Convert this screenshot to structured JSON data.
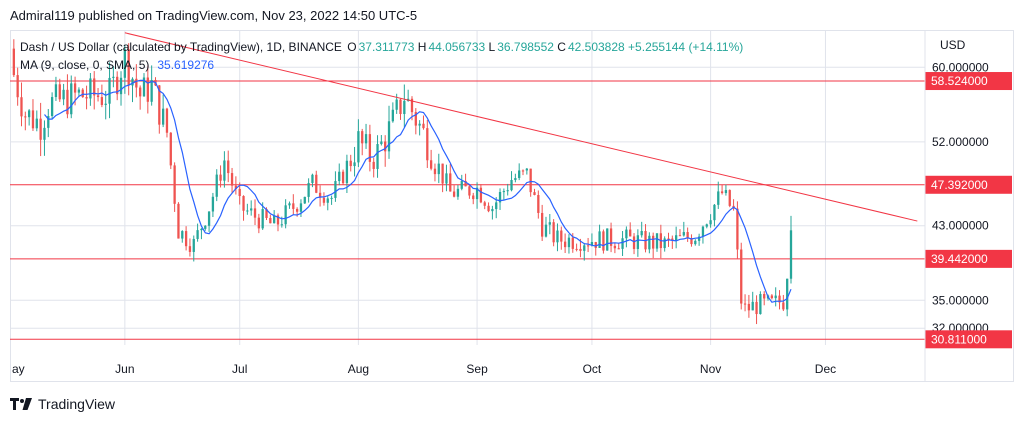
{
  "header": {
    "publisher": "Admiral119 published on TradingView.com, Nov 23, 2022 14:50 UTC-5"
  },
  "legend": {
    "symbol": "Dash / US Dollar (calculated by TradingView), 1D, BINANCE",
    "open_label": "O",
    "open": "37.311773",
    "high_label": "H",
    "high": "44.056733",
    "low_label": "L",
    "low": "36.798552",
    "close_label": "C",
    "close": "42.503828",
    "change": "+5.255144 (+14.11%)",
    "ma_label": "MA (9, close, 0, SMA, 5)",
    "ma_value": "35.619276"
  },
  "currency": "USD",
  "footer": {
    "brand": "TradingView",
    "logo_icon": "tradingview-logo-icon"
  },
  "colors": {
    "up": "#26a69a",
    "down": "#ef5350",
    "ma": "#2962ff",
    "level": "#f23645",
    "trend": "#f23645",
    "grid": "#e0e3eb"
  },
  "chart_data": {
    "type": "candlestick",
    "symbol": "DASHUSD",
    "interval": "1D",
    "y_ticks": [
      60,
      52,
      43,
      35,
      32
    ],
    "y_tick_labels": [
      "60.000000",
      "52.000000",
      "43.000000",
      "35.000000",
      "32.000000"
    ],
    "ylim": [
      30.2,
      64
    ],
    "x_tick_labels": [
      "ay",
      "Jun",
      "Jul",
      "Aug",
      "Sep",
      "Oct",
      "Nov",
      "Dec"
    ],
    "x_ticks": [
      "2022-05-01",
      "2022-06-01",
      "2022-07-01",
      "2022-08-01",
      "2022-09-01",
      "2022-10-01",
      "2022-11-01",
      "2022-12-01"
    ],
    "xlim": [
      "2022-05-02",
      "2022-12-27"
    ],
    "levels": [
      {
        "value": 58.524,
        "label": "58.524000"
      },
      {
        "value": 47.392,
        "label": "47.392000"
      },
      {
        "value": 39.442,
        "label": "39.442000"
      },
      {
        "value": 30.8111,
        "label": "30.811000"
      }
    ],
    "trendline": {
      "start": {
        "date": "2022-06-01",
        "value": 63.7
      },
      "end": {
        "date": "2022-12-25",
        "value": 43.5
      }
    },
    "anchors": [
      [
        "2022-05-01",
        62
      ],
      [
        "2022-05-06",
        55
      ],
      [
        "2022-05-10",
        54
      ],
      [
        "2022-05-12",
        56
      ],
      [
        "2022-05-20",
        57
      ],
      [
        "2022-05-28",
        57
      ],
      [
        "2022-06-01",
        61
      ],
      [
        "2022-06-05",
        57
      ],
      [
        "2022-06-08",
        58
      ],
      [
        "2022-06-12",
        53
      ],
      [
        "2022-06-15",
        42.5
      ],
      [
        "2022-06-19",
        41
      ],
      [
        "2022-06-23",
        45
      ],
      [
        "2022-06-27",
        50
      ],
      [
        "2022-07-01",
        45
      ],
      [
        "2022-07-05",
        44
      ],
      [
        "2022-07-10",
        43
      ],
      [
        "2022-07-15",
        45
      ],
      [
        "2022-07-20",
        47.5
      ],
      [
        "2022-07-25",
        46
      ],
      [
        "2022-08-01",
        52
      ],
      [
        "2022-08-05",
        50
      ],
      [
        "2022-08-10",
        54
      ],
      [
        "2022-08-13",
        57
      ],
      [
        "2022-08-19",
        52
      ],
      [
        "2022-08-25",
        46.5
      ],
      [
        "2022-09-01",
        47
      ],
      [
        "2022-09-05",
        45
      ],
      [
        "2022-09-10",
        48
      ],
      [
        "2022-09-14",
        48.5
      ],
      [
        "2022-09-18",
        43
      ],
      [
        "2022-09-22",
        41.5
      ],
      [
        "2022-10-01",
        41.5
      ],
      [
        "2022-10-10",
        41.5
      ],
      [
        "2022-10-20",
        41
      ],
      [
        "2022-10-28",
        42
      ],
      [
        "2022-11-04",
        46.5
      ],
      [
        "2022-11-07",
        44.5
      ],
      [
        "2022-11-09",
        35
      ],
      [
        "2022-11-10",
        34
      ],
      [
        "2022-11-13",
        34.5
      ],
      [
        "2022-11-17",
        34.5
      ],
      [
        "2022-11-20",
        35
      ],
      [
        "2022-11-21",
        37.31
      ],
      [
        "2022-11-22",
        42.5
      ]
    ]
  }
}
